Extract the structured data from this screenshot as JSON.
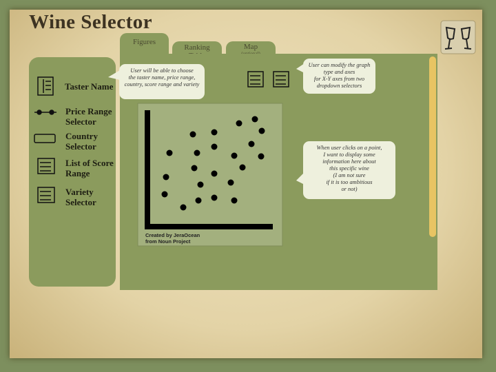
{
  "header": {
    "title": "Wine Selector"
  },
  "tabs": [
    {
      "label": "Figures"
    },
    {
      "label": "Ranking Table"
    },
    {
      "label": "Map",
      "note": "(optional)"
    }
  ],
  "sidebar": {
    "items": [
      "Taster Name",
      "Price Range Selector",
      "Country Selector",
      "List of Score Range",
      "Variety Selector"
    ]
  },
  "callouts": [
    {
      "lines": [
        "User will be able to choose",
        "the taster name, price range,",
        "country, score range and variety"
      ]
    },
    {
      "lines": [
        "User can modify the graph",
        "type and axes",
        "for X-Y axes from two",
        "dropdown selectors"
      ]
    },
    {
      "lines": [
        "When user clicks on a point,",
        "I want to display some",
        "information here about",
        "this specific wine",
        "(I am not sure",
        "if it is too ambitious",
        "or not)"
      ]
    }
  ],
  "figure": {
    "credit": [
      "Created by JeraOcean",
      "from Noun Project"
    ]
  }
}
